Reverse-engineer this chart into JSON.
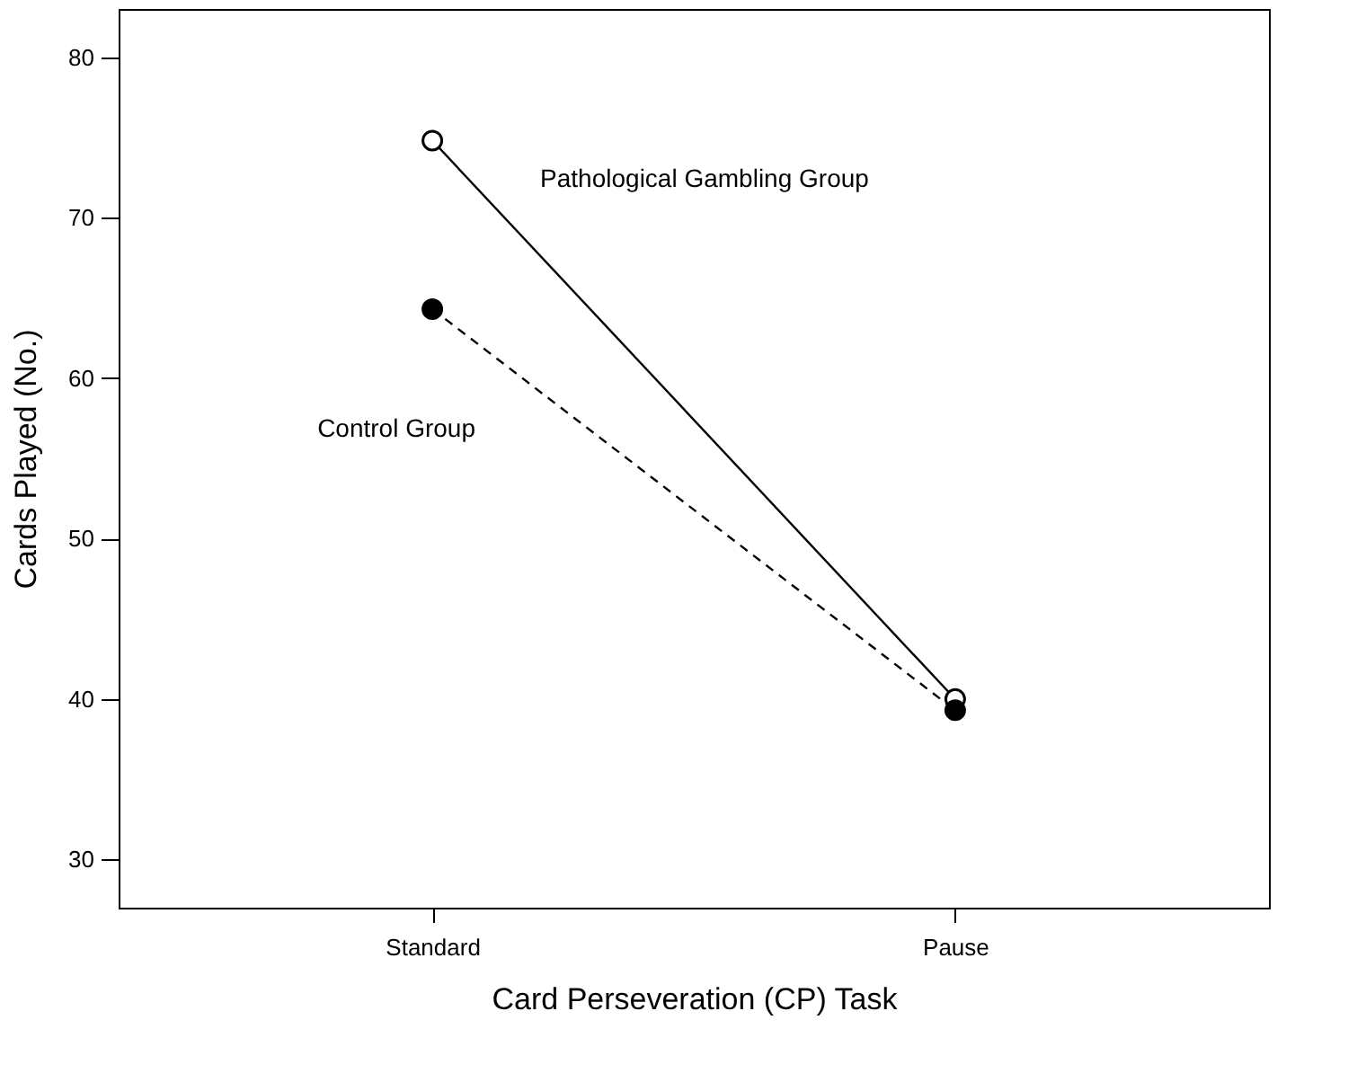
{
  "chart_data": {
    "type": "line",
    "xlabel": "Card Perseveration (CP) Task",
    "ylabel": "Cards Played (No.)",
    "categories": [
      "Standard",
      "Pause"
    ],
    "series": [
      {
        "name": "Pathological Gambling Group",
        "color": "#000000",
        "values": [
          74.8,
          40.0
        ],
        "line_style": "solid",
        "marker": "circle"
      },
      {
        "name": "Control Group",
        "color": "#000000",
        "values": [
          64.3,
          39.3
        ],
        "line_style": "dashed",
        "marker": "circle"
      }
    ],
    "ylim": [
      27,
      83
    ],
    "yticks": [
      30,
      40,
      50,
      60,
      70,
      80
    ],
    "grid": false,
    "legend": false
  }
}
